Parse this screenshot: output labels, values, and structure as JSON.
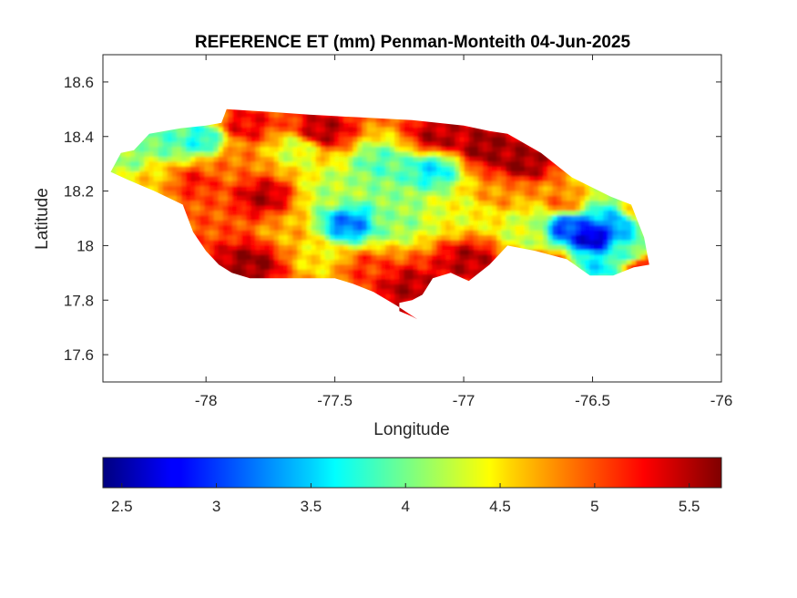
{
  "chart_data": {
    "type": "heatmap",
    "title": "REFERENCE ET (mm) Penman-Monteith 04-Jun-2025",
    "xlabel": "Longitude",
    "ylabel": "Latitude",
    "xlim": [
      -78.4,
      -76
    ],
    "ylim": [
      17.5,
      18.7
    ],
    "x_ticks": [
      -78,
      -77.5,
      -77,
      -76.5,
      -76
    ],
    "y_ticks": [
      17.6,
      17.8,
      18,
      18.2,
      18.4,
      18.6
    ],
    "x_tick_labels": [
      "-78",
      "-77.5",
      "-77",
      "-76.5",
      "-76"
    ],
    "y_tick_labels": [
      "17.6",
      "17.8",
      "18",
      "18.2",
      "18.4",
      "18.6"
    ],
    "colorbar": {
      "colormap": "jet",
      "orientation": "horizontal",
      "range": [
        2.4,
        5.67
      ],
      "ticks": [
        2.5,
        3,
        3.5,
        4,
        4.5,
        5,
        5.5
      ],
      "tick_labels": [
        "2.5",
        "3",
        "3.5",
        "4",
        "4.5",
        "5",
        "5.5"
      ]
    },
    "region_outline": [
      [
        -78.37,
        18.27
      ],
      [
        -78.33,
        18.34
      ],
      [
        -78.28,
        18.35
      ],
      [
        -78.22,
        18.41
      ],
      [
        -78.1,
        18.43
      ],
      [
        -78.0,
        18.44
      ],
      [
        -77.94,
        18.45
      ],
      [
        -77.92,
        18.5
      ],
      [
        -77.75,
        18.49
      ],
      [
        -77.6,
        18.48
      ],
      [
        -77.4,
        18.47
      ],
      [
        -77.2,
        18.46
      ],
      [
        -77.0,
        18.44
      ],
      [
        -76.9,
        18.42
      ],
      [
        -76.83,
        18.41
      ],
      [
        -76.7,
        18.34
      ],
      [
        -76.58,
        18.25
      ],
      [
        -76.43,
        18.18
      ],
      [
        -76.35,
        18.15
      ],
      [
        -76.3,
        18.03
      ],
      [
        -76.28,
        17.93
      ],
      [
        -76.34,
        17.92
      ],
      [
        -76.42,
        17.89
      ],
      [
        -76.51,
        17.89
      ],
      [
        -76.6,
        17.95
      ],
      [
        -76.72,
        17.98
      ],
      [
        -76.83,
        18.0
      ],
      [
        -76.9,
        17.93
      ],
      [
        -76.98,
        17.87
      ],
      [
        -77.05,
        17.9
      ],
      [
        -77.12,
        17.88
      ],
      [
        -77.16,
        17.82
      ],
      [
        -77.2,
        17.8
      ],
      [
        -77.25,
        17.79
      ],
      [
        -77.25,
        17.76
      ],
      [
        -77.2,
        17.74
      ],
      [
        -77.18,
        17.73
      ],
      [
        -77.26,
        17.78
      ],
      [
        -77.35,
        17.83
      ],
      [
        -77.43,
        17.86
      ],
      [
        -77.5,
        17.88
      ],
      [
        -77.57,
        17.88
      ],
      [
        -77.65,
        17.88
      ],
      [
        -77.75,
        17.88
      ],
      [
        -77.83,
        17.88
      ],
      [
        -77.9,
        17.9
      ],
      [
        -77.95,
        17.93
      ],
      [
        -78.0,
        17.98
      ],
      [
        -78.05,
        18.05
      ],
      [
        -78.09,
        18.15
      ],
      [
        -78.2,
        18.2
      ],
      [
        -78.3,
        18.24
      ]
    ],
    "value_field": [
      {
        "lon": -78.28,
        "lat": 18.32,
        "value": 4.1
      },
      {
        "lon": -78.14,
        "lat": 18.38,
        "value": 3.9
      },
      {
        "lon": -78.02,
        "lat": 18.39,
        "value": 3.7
      },
      {
        "lon": -78.2,
        "lat": 18.26,
        "value": 4.6
      },
      {
        "lon": -78.05,
        "lat": 18.24,
        "value": 5.2
      },
      {
        "lon": -77.98,
        "lat": 18.12,
        "value": 5.0
      },
      {
        "lon": -77.9,
        "lat": 18.3,
        "value": 4.9
      },
      {
        "lon": -77.85,
        "lat": 18.44,
        "value": 5.3
      },
      {
        "lon": -77.78,
        "lat": 18.18,
        "value": 5.5
      },
      {
        "lon": -77.82,
        "lat": 17.94,
        "value": 5.6
      },
      {
        "lon": -77.68,
        "lat": 18.05,
        "value": 4.7
      },
      {
        "lon": -77.65,
        "lat": 18.35,
        "value": 4.3
      },
      {
        "lon": -77.55,
        "lat": 18.42,
        "value": 5.5
      },
      {
        "lon": -77.5,
        "lat": 18.2,
        "value": 4.2
      },
      {
        "lon": -77.45,
        "lat": 18.08,
        "value": 3.2
      },
      {
        "lon": -77.55,
        "lat": 17.96,
        "value": 4.5
      },
      {
        "lon": -77.38,
        "lat": 17.92,
        "value": 5.1
      },
      {
        "lon": -77.32,
        "lat": 18.3,
        "value": 3.9
      },
      {
        "lon": -77.25,
        "lat": 18.1,
        "value": 4.1
      },
      {
        "lon": -77.22,
        "lat": 17.85,
        "value": 5.5
      },
      {
        "lon": -77.12,
        "lat": 18.28,
        "value": 3.6
      },
      {
        "lon": -77.1,
        "lat": 18.4,
        "value": 5.5
      },
      {
        "lon": -77.02,
        "lat": 18.12,
        "value": 4.4
      },
      {
        "lon": -76.98,
        "lat": 17.95,
        "value": 5.5
      },
      {
        "lon": -76.92,
        "lat": 18.36,
        "value": 5.6
      },
      {
        "lon": -76.85,
        "lat": 18.2,
        "value": 4.8
      },
      {
        "lon": -76.78,
        "lat": 18.3,
        "value": 5.6
      },
      {
        "lon": -76.75,
        "lat": 18.06,
        "value": 4.3
      },
      {
        "lon": -76.62,
        "lat": 18.16,
        "value": 4.9
      },
      {
        "lon": -76.6,
        "lat": 18.07,
        "value": 3.0
      },
      {
        "lon": -76.5,
        "lat": 18.03,
        "value": 2.6
      },
      {
        "lon": -76.48,
        "lat": 17.93,
        "value": 3.6
      },
      {
        "lon": -76.4,
        "lat": 18.08,
        "value": 3.3
      },
      {
        "lon": -76.35,
        "lat": 17.97,
        "value": 3.9
      },
      {
        "lon": -76.32,
        "lat": 18.12,
        "value": 4.6
      },
      {
        "lon": -76.66,
        "lat": 17.93,
        "value": 5.2
      },
      {
        "lon": -76.3,
        "lat": 17.93,
        "value": 5.3
      }
    ]
  }
}
